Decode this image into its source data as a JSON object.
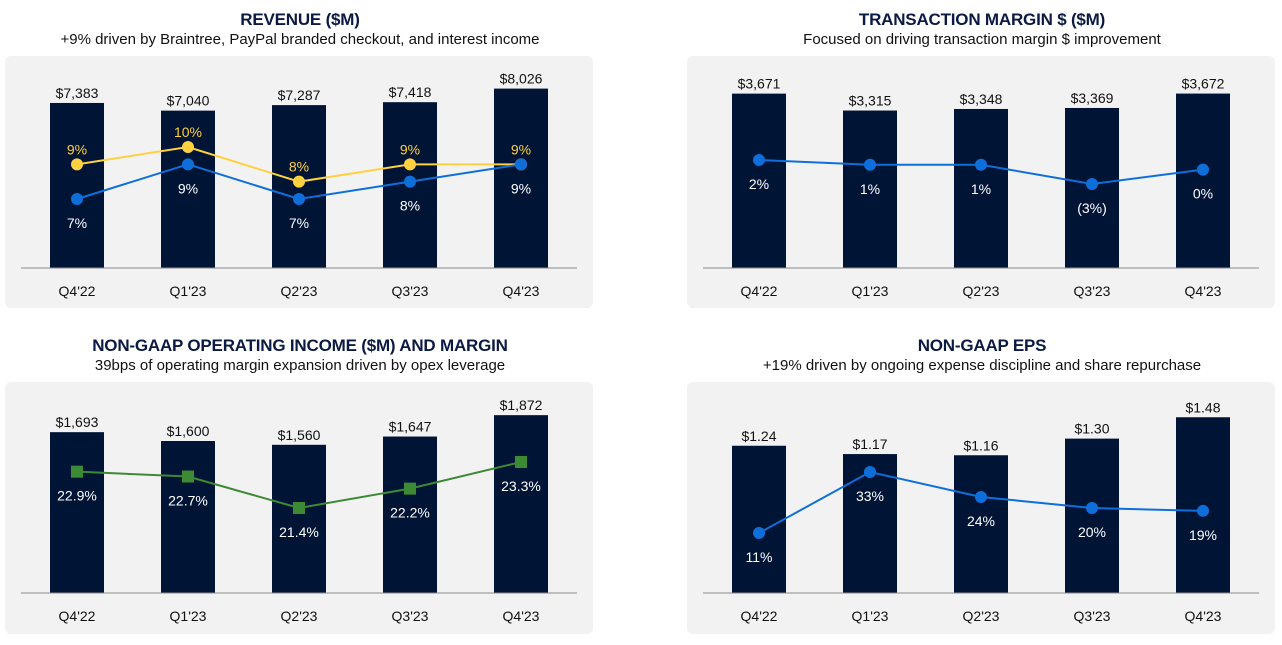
{
  "colors": {
    "panel_bg": "#f2f2f2",
    "bar": "#001435",
    "axis": "#8a8a8a",
    "line_yellow": "#ffd140",
    "line_blue": "#0e6fdb",
    "line_green": "#3d8a35",
    "inner_label": "#ffffff",
    "value_label": "#111111"
  },
  "chart_data": [
    {
      "type": "bar",
      "title": "REVENUE ($M)",
      "subtitle": "+9% driven by Braintree, PayPal branded checkout, and interest income",
      "categories": [
        "Q4'22",
        "Q1'23",
        "Q2'23",
        "Q3'23",
        "Q4'23"
      ],
      "series": [
        {
          "values": [
            7383,
            7040,
            7287,
            7418,
            8026
          ],
          "labels": [
            "$7,383",
            "$7,040",
            "$7,287",
            "$7,418",
            "$8,026"
          ]
        }
      ],
      "line_series": [
        {
          "color": "yellow",
          "marker": "circle",
          "values": [
            9,
            10,
            8,
            9,
            9
          ],
          "labels": [
            "9%",
            "10%",
            "8%",
            "9%",
            "9%"
          ]
        },
        {
          "color": "blue",
          "marker": "circle",
          "values": [
            7,
            9,
            7,
            8,
            9
          ],
          "labels": [
            "7%",
            "9%",
            "7%",
            "8%",
            "9%"
          ]
        }
      ],
      "ylim": [
        0,
        8500
      ]
    },
    {
      "type": "bar",
      "title": "TRANSACTION MARGIN $ ($M)",
      "subtitle": "Focused on driving transaction margin $ improvement",
      "categories": [
        "Q4'22",
        "Q1'23",
        "Q2'23",
        "Q3'23",
        "Q4'23"
      ],
      "series": [
        {
          "values": [
            3671,
            3315,
            3348,
            3369,
            3672
          ],
          "labels": [
            "$3,671",
            "$3,315",
            "$3,348",
            "$3,369",
            "$3,672"
          ]
        }
      ],
      "line_series": [
        {
          "color": "blue",
          "marker": "circle",
          "values": [
            2,
            1,
            1,
            -3,
            0
          ],
          "labels": [
            "2%",
            "1%",
            "1%",
            "(3%)",
            "0%"
          ]
        }
      ],
      "ylim": [
        0,
        4000
      ]
    },
    {
      "type": "bar",
      "title": "NON-GAAP OPERATING INCOME ($M) AND MARGIN",
      "subtitle": "39bps of operating margin expansion driven by opex leverage",
      "categories": [
        "Q4'22",
        "Q1'23",
        "Q2'23",
        "Q3'23",
        "Q4'23"
      ],
      "series": [
        {
          "values": [
            1693,
            1600,
            1560,
            1647,
            1872
          ],
          "labels": [
            "$1,693",
            "$1,600",
            "$1,560",
            "$1,647",
            "$1,872"
          ]
        }
      ],
      "line_series": [
        {
          "color": "green",
          "marker": "square",
          "values": [
            22.9,
            22.7,
            21.4,
            22.2,
            23.3
          ],
          "labels": [
            "22.9%",
            "22.7%",
            "21.4%",
            "22.2%",
            "23.3%"
          ]
        }
      ],
      "ylim": [
        0,
        2000
      ]
    },
    {
      "type": "bar",
      "title": "NON-GAAP EPS",
      "subtitle": "+19% driven by ongoing expense discipline and share repurchase",
      "categories": [
        "Q4'22",
        "Q1'23",
        "Q2'23",
        "Q3'23",
        "Q4'23"
      ],
      "series": [
        {
          "values": [
            1.24,
            1.17,
            1.16,
            1.3,
            1.48
          ],
          "labels": [
            "$1.24",
            "$1.17",
            "$1.16",
            "$1.30",
            "$1.48"
          ]
        }
      ],
      "line_series": [
        {
          "color": "blue",
          "marker": "circle",
          "values": [
            11,
            33,
            24,
            20,
            19
          ],
          "labels": [
            "11%",
            "33%",
            "24%",
            "20%",
            "19%"
          ]
        }
      ],
      "ylim": [
        0,
        1.6
      ]
    }
  ]
}
